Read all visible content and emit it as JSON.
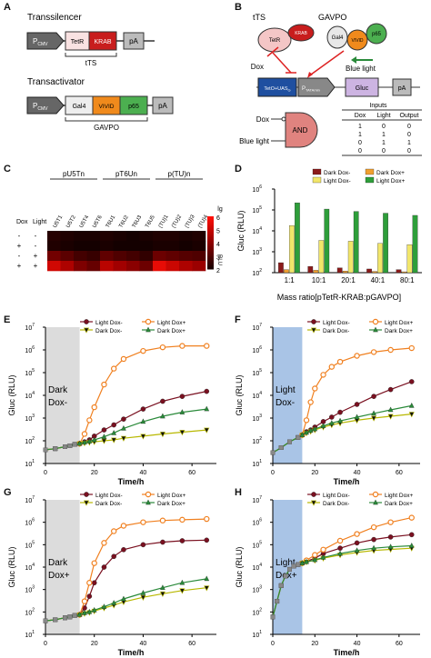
{
  "panels": {
    "A": "A",
    "B": "B",
    "C": "C",
    "D": "D",
    "E": "E",
    "F": "F",
    "G": "G",
    "H": "H"
  },
  "panelA": {
    "transsilencer_title": "Transsilencer",
    "promoter": "P",
    "promoter_sub": "CMV",
    "tetr": "TetR",
    "krab": "KRAB",
    "pa": "pA",
    "tts_label": "tTS",
    "transactivator_title": "Transactivator",
    "gal4": "Gal4",
    "vivid": "VIVID",
    "p65": "p65",
    "gavpo_label": "GAVPO"
  },
  "panelB": {
    "tts": "tTS",
    "gavpo": "GAVPO",
    "tetr": "TetR",
    "krab": "KRAB",
    "gal4": "Gal4",
    "vivid": "VIVID",
    "p65": "p65",
    "dox": "Dox",
    "blue_light": "Blue light",
    "operator": "TetO+UAS",
    "operator_sub": "G",
    "promoter": "P",
    "promoter_sub": "TATAmin",
    "gluc": "Gluc",
    "pa": "pA",
    "gate": "AND",
    "gate_input1": "Dox",
    "gate_input2": "Blue light",
    "truth_title": "Inputs",
    "truth_headers": [
      "Dox",
      "Light",
      "Output"
    ],
    "truth_rows": [
      [
        "1",
        "0",
        "0"
      ],
      [
        "1",
        "1",
        "0"
      ],
      [
        "0",
        "1",
        "1"
      ],
      [
        "0",
        "0",
        "0"
      ]
    ]
  },
  "heatmap": {
    "row_header_dox": "Dox",
    "row_header_light": "Light",
    "group_labels": [
      "pU5Tn",
      "pT6Un",
      "p(TU)n"
    ],
    "columns": [
      "U5T1",
      "U5T2",
      "U5T4",
      "U5T6",
      "T6U1",
      "T6U2",
      "T6U3",
      "T6U5",
      "(TU)1",
      "(TU)2",
      "(TU)3",
      "(TU)4"
    ],
    "rows": [
      {
        "dox": "-",
        "light": "-",
        "values": [
          2.3,
          2.2,
          2.1,
          2.1,
          2.2,
          2.1,
          2.0,
          2.1,
          2.2,
          2.2,
          2.1,
          2.2
        ]
      },
      {
        "dox": "+",
        "light": "-",
        "values": [
          2.2,
          2.1,
          2.0,
          2.0,
          2.1,
          2.0,
          2.0,
          2.0,
          2.1,
          2.1,
          2.0,
          2.1
        ]
      },
      {
        "dox": "-",
        "light": "+",
        "values": [
          3.6,
          3.2,
          2.8,
          2.6,
          3.3,
          3.0,
          2.8,
          2.5,
          3.5,
          3.3,
          3.1,
          3.0
        ]
      },
      {
        "dox": "+",
        "light": "+",
        "values": [
          5.2,
          4.6,
          3.8,
          3.4,
          4.8,
          4.4,
          4.0,
          3.5,
          5.6,
          5.1,
          4.6,
          4.3
        ]
      }
    ],
    "colorbar_title": "lg",
    "colorbar_unit": "RLU",
    "colorbar_ticks": [
      "6",
      "5",
      "4",
      "3",
      "2"
    ]
  },
  "chart_data": [
    {
      "type": "bar",
      "panel": "D",
      "ylabel": "Gluc (RLU)",
      "xlabel": "Mass ratio[pTetR-KRAB:pGAVPO]",
      "yscale": "log",
      "ylim": [
        100,
        1000000
      ],
      "ytick_labels": [
        "10",
        "10",
        "10",
        "10",
        "10"
      ],
      "ytick_exps": [
        "2",
        "3",
        "4",
        "5",
        "6"
      ],
      "categories": [
        "1:1",
        "10:1",
        "20:1",
        "40:1",
        "80:1"
      ],
      "legend": "top",
      "series": [
        {
          "name": "Dark Dox-",
          "color": "#8b1a1a",
          "values": [
            300,
            200,
            170,
            150,
            140
          ]
        },
        {
          "name": "Dark Dox+",
          "color": "#f0a030",
          "values": [
            140,
            130,
            120,
            115,
            110
          ]
        },
        {
          "name": "Light Dox-",
          "color": "#f2e66a",
          "values": [
            18000,
            3500,
            3200,
            2500,
            2200
          ]
        },
        {
          "name": "Light Dox+",
          "color": "#2e9e3a",
          "values": [
            220000,
            110000,
            85000,
            70000,
            55000
          ]
        }
      ]
    },
    {
      "type": "line",
      "panel": "E",
      "shade_label": "Dark",
      "shade_label2": "Dox-",
      "shade_color": "#dcdcdc",
      "ylabel": "Gluc (RLU)",
      "xlabel": "Time/h",
      "yscale": "log",
      "ylim": [
        10,
        10000000
      ],
      "xlim": [
        0,
        70
      ],
      "x_ticks": [
        "0",
        "20",
        "40",
        "60"
      ],
      "ytick_labels": [
        "10",
        "10",
        "10",
        "10",
        "10",
        "10",
        "10"
      ],
      "ytick_exps": [
        "1",
        "2",
        "3",
        "4",
        "5",
        "6",
        "7"
      ],
      "series": [
        {
          "name": "Light Dox-",
          "color": "#7a1020",
          "marker": "circle",
          "x": [
            0,
            4,
            8,
            10,
            12,
            14,
            16,
            18,
            20,
            24,
            28,
            32,
            40,
            48,
            56,
            66
          ],
          "y": [
            40,
            45,
            55,
            60,
            70,
            75,
            90,
            110,
            160,
            300,
            500,
            900,
            2500,
            5500,
            9000,
            15000
          ]
        },
        {
          "name": "Light Dox+",
          "color": "#f08020",
          "marker": "circle-open",
          "x": [
            0,
            4,
            8,
            10,
            12,
            14,
            16,
            18,
            20,
            24,
            28,
            32,
            40,
            48,
            56,
            66
          ],
          "y": [
            40,
            45,
            55,
            60,
            70,
            75,
            200,
            800,
            3000,
            30000,
            150000,
            400000,
            900000,
            1300000,
            1500000,
            1500000
          ]
        },
        {
          "name": "Dark Dox-",
          "color": "#b8b800",
          "marker": "triangle-down",
          "x": [
            0,
            4,
            8,
            10,
            12,
            14,
            16,
            18,
            20,
            24,
            28,
            32,
            40,
            48,
            56,
            66
          ],
          "y": [
            40,
            45,
            55,
            60,
            70,
            75,
            80,
            85,
            90,
            100,
            110,
            130,
            160,
            200,
            240,
            300
          ]
        },
        {
          "name": "Dark Dox+",
          "color": "#2a8a3a",
          "marker": "triangle",
          "x": [
            0,
            4,
            8,
            10,
            12,
            14,
            16,
            18,
            20,
            24,
            28,
            32,
            40,
            48,
            56,
            66
          ],
          "y": [
            40,
            45,
            55,
            60,
            70,
            75,
            85,
            95,
            110,
            150,
            220,
            350,
            700,
            1200,
            1800,
            2500
          ]
        }
      ]
    },
    {
      "type": "line",
      "panel": "F",
      "shade_label": "Light",
      "shade_label2": "Dox-",
      "shade_color": "#a9c4e6",
      "ylabel": "Gluc (RLU)",
      "xlabel": "Time/h",
      "yscale": "log",
      "ylim": [
        10,
        10000000
      ],
      "xlim": [
        0,
        70
      ],
      "x_ticks": [
        "0",
        "20",
        "40",
        "60"
      ],
      "ytick_labels": [
        "10",
        "10",
        "10",
        "10",
        "10",
        "10",
        "10"
      ],
      "ytick_exps": [
        "1",
        "2",
        "3",
        "4",
        "5",
        "6",
        "7"
      ],
      "series": [
        {
          "name": "Light Dox-",
          "color": "#7a1020",
          "marker": "circle",
          "x": [
            0,
            4,
            8,
            12,
            14,
            16,
            18,
            20,
            24,
            28,
            32,
            40,
            48,
            56,
            66
          ],
          "y": [
            30,
            50,
            90,
            140,
            180,
            250,
            300,
            400,
            700,
            1100,
            1800,
            4000,
            9000,
            18000,
            40000
          ]
        },
        {
          "name": "Light Dox+",
          "color": "#f08020",
          "marker": "circle-open",
          "x": [
            0,
            4,
            8,
            12,
            14,
            16,
            18,
            20,
            24,
            28,
            32,
            40,
            48,
            56,
            66
          ],
          "y": [
            30,
            50,
            90,
            140,
            180,
            800,
            5000,
            20000,
            80000,
            180000,
            300000,
            550000,
            800000,
            1000000,
            1200000
          ]
        },
        {
          "name": "Dark Dox-",
          "color": "#b8b800",
          "marker": "triangle-down",
          "x": [
            0,
            4,
            8,
            12,
            14,
            16,
            18,
            20,
            24,
            28,
            32,
            40,
            48,
            56,
            66
          ],
          "y": [
            30,
            50,
            90,
            140,
            180,
            220,
            260,
            300,
            400,
            500,
            600,
            800,
            1000,
            1200,
            1500
          ]
        },
        {
          "name": "Dark Dox+",
          "color": "#2a8a3a",
          "marker": "triangle",
          "x": [
            0,
            4,
            8,
            12,
            14,
            16,
            18,
            20,
            24,
            28,
            32,
            40,
            48,
            56,
            66
          ],
          "y": [
            30,
            50,
            90,
            140,
            180,
            230,
            280,
            330,
            450,
            600,
            750,
            1100,
            1600,
            2300,
            3500
          ]
        }
      ]
    },
    {
      "type": "line",
      "panel": "G",
      "shade_label": "Dark",
      "shade_label2": "Dox+",
      "shade_color": "#dcdcdc",
      "ylabel": "Gluc (RLU)",
      "xlabel": "Time/h",
      "yscale": "log",
      "ylim": [
        10,
        10000000
      ],
      "xlim": [
        0,
        70
      ],
      "x_ticks": [
        "0",
        "20",
        "40",
        "60"
      ],
      "ytick_labels": [
        "10",
        "10",
        "10",
        "10",
        "10",
        "10",
        "10"
      ],
      "ytick_exps": [
        "1",
        "2",
        "3",
        "4",
        "5",
        "6",
        "7"
      ],
      "series": [
        {
          "name": "Light Dox-",
          "color": "#7a1020",
          "marker": "circle",
          "x": [
            0,
            4,
            8,
            10,
            12,
            14,
            16,
            18,
            20,
            24,
            28,
            32,
            40,
            48,
            56,
            66
          ],
          "y": [
            40,
            45,
            55,
            60,
            70,
            75,
            150,
            500,
            2000,
            10000,
            30000,
            60000,
            100000,
            130000,
            150000,
            160000
          ]
        },
        {
          "name": "Light Dox+",
          "color": "#f08020",
          "marker": "circle-open",
          "x": [
            0,
            4,
            8,
            10,
            12,
            14,
            16,
            18,
            20,
            24,
            28,
            32,
            40,
            48,
            56,
            66
          ],
          "y": [
            40,
            45,
            55,
            60,
            70,
            75,
            300,
            2000,
            15000,
            120000,
            400000,
            700000,
            1000000,
            1200000,
            1300000,
            1400000
          ]
        },
        {
          "name": "Dark Dox-",
          "color": "#b8b800",
          "marker": "triangle-down",
          "x": [
            0,
            4,
            8,
            10,
            12,
            14,
            16,
            18,
            20,
            24,
            28,
            32,
            40,
            48,
            56,
            66
          ],
          "y": [
            40,
            45,
            55,
            60,
            70,
            75,
            85,
            95,
            110,
            150,
            200,
            280,
            450,
            650,
            900,
            1200
          ]
        },
        {
          "name": "Dark Dox+",
          "color": "#2a8a3a",
          "marker": "triangle",
          "x": [
            0,
            4,
            8,
            10,
            12,
            14,
            16,
            18,
            20,
            24,
            28,
            32,
            40,
            48,
            56,
            66
          ],
          "y": [
            40,
            45,
            55,
            60,
            70,
            75,
            90,
            100,
            120,
            170,
            250,
            380,
            700,
            1200,
            2000,
            3000
          ]
        }
      ]
    },
    {
      "type": "line",
      "panel": "H",
      "shade_label": "Light",
      "shade_label2": "Dox+",
      "shade_color": "#a9c4e6",
      "ylabel": "Gluc (RLU)",
      "xlabel": "Time/h",
      "yscale": "log",
      "ylim": [
        10,
        10000000
      ],
      "xlim": [
        0,
        70
      ],
      "x_ticks": [
        "0",
        "20",
        "40",
        "60"
      ],
      "ytick_labels": [
        "10",
        "10",
        "10",
        "10",
        "10",
        "10",
        "10"
      ],
      "ytick_exps": [
        "1",
        "2",
        "3",
        "4",
        "5",
        "6",
        "7"
      ],
      "series": [
        {
          "name": "Light Dox-",
          "color": "#7a1020",
          "marker": "circle",
          "x": [
            0,
            2,
            4,
            6,
            8,
            10,
            12,
            14,
            16,
            20,
            24,
            32,
            40,
            48,
            56,
            66
          ],
          "y": [
            60,
            300,
            1500,
            4000,
            8000,
            11000,
            13000,
            15000,
            18000,
            25000,
            40000,
            70000,
            120000,
            170000,
            220000,
            280000
          ]
        },
        {
          "name": "Light Dox+",
          "color": "#f08020",
          "marker": "circle-open",
          "x": [
            0,
            2,
            4,
            6,
            8,
            10,
            12,
            14,
            16,
            20,
            24,
            32,
            40,
            48,
            56,
            66
          ],
          "y": [
            60,
            300,
            1500,
            4000,
            8000,
            11000,
            13000,
            15000,
            20000,
            35000,
            60000,
            150000,
            300000,
            600000,
            1000000,
            1600000
          ]
        },
        {
          "name": "Dark Dox-",
          "color": "#b8b800",
          "marker": "triangle-down",
          "x": [
            0,
            2,
            4,
            6,
            8,
            10,
            12,
            14,
            16,
            20,
            24,
            32,
            40,
            48,
            56,
            66
          ],
          "y": [
            60,
            300,
            1500,
            4000,
            8000,
            11000,
            13000,
            15000,
            17000,
            20000,
            25000,
            35000,
            45000,
            55000,
            62000,
            70000
          ]
        },
        {
          "name": "Dark Dox+",
          "color": "#2a8a3a",
          "marker": "triangle",
          "x": [
            0,
            2,
            4,
            6,
            8,
            10,
            12,
            14,
            16,
            20,
            24,
            32,
            40,
            48,
            56,
            66
          ],
          "y": [
            60,
            300,
            1500,
            4000,
            8000,
            11000,
            13000,
            15000,
            17000,
            21000,
            27000,
            40000,
            55000,
            70000,
            80000,
            90000
          ]
        }
      ]
    }
  ]
}
